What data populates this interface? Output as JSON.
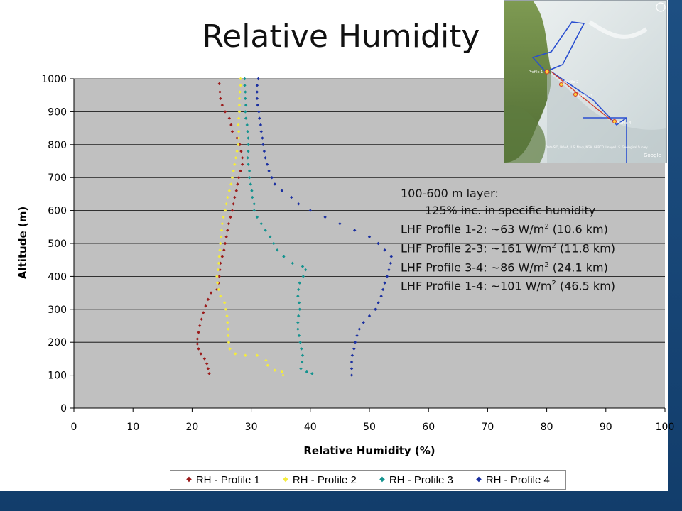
{
  "slide": {
    "title": "Relative Humidity",
    "annotation": {
      "layer": "100-600 m layer:",
      "increase": "125% inc. in specific humidity",
      "lhf": [
        {
          "label": "LHF Profile 1-2: ~63 W/m",
          "sup": "2",
          "rest": " (10.6 km)"
        },
        {
          "label": "LHF Profile 2-3: ~161 W/m",
          "sup": "2",
          "rest": " (11.8 km)"
        },
        {
          "label": "LHF Profile 3-4: ~86 W/m",
          "sup": "2",
          "rest": " (24.1 km)"
        },
        {
          "label": "LHF Profile 1-4: ~101 W/m",
          "sup": "2",
          "rest": " (46.5 km)"
        }
      ]
    },
    "map": {
      "profile_labels": [
        "Profile 1",
        "Profile 2",
        "Profile 3",
        "Profile 4"
      ],
      "attribution": "Data SIO, NOAA, U.S. Navy, NGA, GEBCO. Image U.S. Geological Survey",
      "logo": "Google"
    },
    "colors": {
      "background": "#1b4a7a",
      "plot_area": "#c0c0c0",
      "profile1": "#9b1b1b",
      "profile2": "#f4ec3c",
      "profile3": "#14938f",
      "profile4": "#1a2fa0"
    }
  },
  "chart_data": {
    "type": "scatter",
    "title": "",
    "xlabel": "Relative Humidity (%)",
    "ylabel": "Altitude (m)",
    "xlim": [
      0,
      100
    ],
    "ylim": [
      0,
      1000
    ],
    "x_ticks": [
      0,
      10,
      20,
      30,
      40,
      50,
      60,
      70,
      80,
      90,
      100
    ],
    "y_ticks": [
      0,
      100,
      200,
      300,
      400,
      500,
      600,
      700,
      800,
      900,
      1000
    ],
    "grid": true,
    "legend": "bottom",
    "series": [
      {
        "name": "RH - Profile 1",
        "color": "#9b1b1b",
        "points": [
          [
            22.9,
            105
          ],
          [
            22.7,
            120
          ],
          [
            22.5,
            135
          ],
          [
            22.1,
            150
          ],
          [
            21.5,
            165
          ],
          [
            21.1,
            180
          ],
          [
            20.9,
            195
          ],
          [
            20.9,
            210
          ],
          [
            21.1,
            230
          ],
          [
            21.3,
            250
          ],
          [
            21.6,
            270
          ],
          [
            21.9,
            290
          ],
          [
            22.3,
            310
          ],
          [
            22.7,
            330
          ],
          [
            23.2,
            350
          ],
          [
            24.2,
            360
          ],
          [
            24.5,
            380
          ],
          [
            24.6,
            400
          ],
          [
            24.7,
            420
          ],
          [
            24.8,
            440
          ],
          [
            25.1,
            460
          ],
          [
            25.4,
            480
          ],
          [
            25.6,
            500
          ],
          [
            25.8,
            520
          ],
          [
            26.0,
            540
          ],
          [
            26.2,
            560
          ],
          [
            26.5,
            580
          ],
          [
            26.8,
            600
          ],
          [
            27.0,
            620
          ],
          [
            27.2,
            640
          ],
          [
            27.5,
            660
          ],
          [
            27.7,
            680
          ],
          [
            27.9,
            700
          ],
          [
            28.2,
            720
          ],
          [
            28.5,
            740
          ],
          [
            28.5,
            760
          ],
          [
            28.3,
            780
          ],
          [
            28.1,
            800
          ],
          [
            27.6,
            820
          ],
          [
            26.8,
            840
          ],
          [
            26.6,
            860
          ],
          [
            26.3,
            880
          ],
          [
            25.6,
            900
          ],
          [
            25.1,
            920
          ],
          [
            24.8,
            940
          ],
          [
            24.7,
            960
          ],
          [
            24.6,
            985
          ]
        ]
      },
      {
        "name": "RH - Profile 2",
        "color": "#f4ec3c",
        "points": [
          [
            35.4,
            100
          ],
          [
            35.2,
            110
          ],
          [
            34.0,
            115
          ],
          [
            32.8,
            130
          ],
          [
            32.5,
            145
          ],
          [
            31.0,
            160
          ],
          [
            29.0,
            160
          ],
          [
            27.3,
            165
          ],
          [
            26.4,
            180
          ],
          [
            26.2,
            200
          ],
          [
            26.1,
            220
          ],
          [
            26.1,
            240
          ],
          [
            26.0,
            260
          ],
          [
            25.9,
            280
          ],
          [
            25.7,
            300
          ],
          [
            25.5,
            320
          ],
          [
            24.8,
            340
          ],
          [
            24.5,
            360
          ],
          [
            24.3,
            380
          ],
          [
            24.2,
            400
          ],
          [
            24.4,
            420
          ],
          [
            24.5,
            440
          ],
          [
            24.6,
            460
          ],
          [
            24.7,
            480
          ],
          [
            24.8,
            500
          ],
          [
            24.9,
            520
          ],
          [
            25.0,
            540
          ],
          [
            25.1,
            560
          ],
          [
            25.3,
            580
          ],
          [
            25.6,
            600
          ],
          [
            25.8,
            620
          ],
          [
            26.0,
            640
          ],
          [
            26.3,
            660
          ],
          [
            26.6,
            680
          ],
          [
            26.8,
            700
          ],
          [
            27.0,
            720
          ],
          [
            27.2,
            740
          ],
          [
            27.4,
            760
          ],
          [
            27.6,
            780
          ],
          [
            27.8,
            800
          ],
          [
            27.9,
            820
          ],
          [
            27.9,
            840
          ],
          [
            27.8,
            860
          ],
          [
            27.9,
            880
          ],
          [
            28.0,
            900
          ],
          [
            28.0,
            920
          ],
          [
            28.0,
            940
          ],
          [
            28.1,
            960
          ],
          [
            28.2,
            980
          ],
          [
            28.2,
            1000
          ]
        ]
      },
      {
        "name": "RH - Profile 3",
        "color": "#14938f",
        "points": [
          [
            40.3,
            105
          ],
          [
            39.4,
            110
          ],
          [
            38.4,
            120
          ],
          [
            38.6,
            140
          ],
          [
            38.7,
            160
          ],
          [
            38.5,
            180
          ],
          [
            38.3,
            200
          ],
          [
            38.1,
            220
          ],
          [
            37.9,
            240
          ],
          [
            37.9,
            260
          ],
          [
            38.0,
            280
          ],
          [
            38.2,
            300
          ],
          [
            38.1,
            320
          ],
          [
            37.9,
            340
          ],
          [
            38.0,
            360
          ],
          [
            38.2,
            380
          ],
          [
            38.8,
            400
          ],
          [
            39.2,
            420
          ],
          [
            38.7,
            430
          ],
          [
            37.0,
            440
          ],
          [
            35.5,
            460
          ],
          [
            34.4,
            480
          ],
          [
            33.8,
            500
          ],
          [
            33.2,
            520
          ],
          [
            32.4,
            540
          ],
          [
            31.7,
            560
          ],
          [
            31.0,
            580
          ],
          [
            30.5,
            600
          ],
          [
            30.5,
            620
          ],
          [
            30.2,
            640
          ],
          [
            30.1,
            660
          ],
          [
            29.9,
            680
          ],
          [
            29.7,
            700
          ],
          [
            29.7,
            720
          ],
          [
            29.5,
            740
          ],
          [
            29.4,
            760
          ],
          [
            29.5,
            780
          ],
          [
            29.5,
            800
          ],
          [
            29.5,
            820
          ],
          [
            29.4,
            840
          ],
          [
            29.3,
            860
          ],
          [
            29.1,
            880
          ],
          [
            29.0,
            900
          ],
          [
            29.1,
            920
          ],
          [
            29.0,
            940
          ],
          [
            29.0,
            960
          ],
          [
            28.9,
            980
          ],
          [
            28.9,
            1000
          ]
        ]
      },
      {
        "name": "RH - Profile 4",
        "color": "#1a2fa0",
        "points": [
          [
            47.0,
            100
          ],
          [
            47.0,
            120
          ],
          [
            47.0,
            140
          ],
          [
            47.1,
            160
          ],
          [
            47.4,
            180
          ],
          [
            47.6,
            200
          ],
          [
            47.9,
            220
          ],
          [
            48.3,
            240
          ],
          [
            49.0,
            260
          ],
          [
            50.0,
            280
          ],
          [
            51.0,
            300
          ],
          [
            51.5,
            320
          ],
          [
            52.0,
            340
          ],
          [
            52.3,
            360
          ],
          [
            52.6,
            380
          ],
          [
            53.0,
            400
          ],
          [
            53.3,
            420
          ],
          [
            53.6,
            440
          ],
          [
            53.7,
            460
          ],
          [
            52.6,
            480
          ],
          [
            51.5,
            500
          ],
          [
            50.0,
            520
          ],
          [
            47.5,
            540
          ],
          [
            45.0,
            560
          ],
          [
            42.5,
            580
          ],
          [
            40.0,
            600
          ],
          [
            38.0,
            620
          ],
          [
            36.8,
            640
          ],
          [
            35.2,
            660
          ],
          [
            34.0,
            680
          ],
          [
            33.5,
            700
          ],
          [
            33.0,
            720
          ],
          [
            32.7,
            740
          ],
          [
            32.4,
            760
          ],
          [
            32.2,
            780
          ],
          [
            32.0,
            800
          ],
          [
            31.9,
            820
          ],
          [
            31.7,
            840
          ],
          [
            31.6,
            860
          ],
          [
            31.4,
            880
          ],
          [
            31.3,
            900
          ],
          [
            31.1,
            920
          ],
          [
            31.0,
            940
          ],
          [
            31.0,
            960
          ],
          [
            31.0,
            980
          ],
          [
            31.2,
            1000
          ]
        ]
      }
    ]
  }
}
